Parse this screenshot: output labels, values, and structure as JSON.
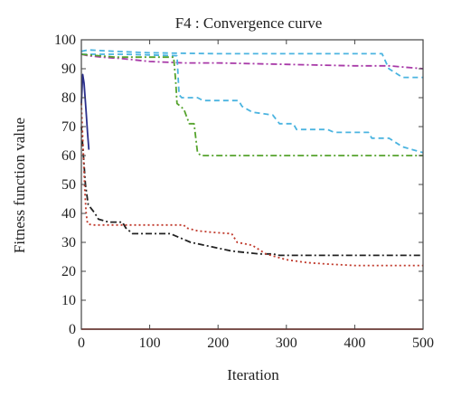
{
  "chart_data": {
    "type": "line",
    "title": "F4 : Convergence curve",
    "xlabel": "Iteration",
    "ylabel": "Fitness function value",
    "xlim": [
      0,
      500
    ],
    "ylim": [
      0,
      100
    ],
    "xticks": [
      0,
      100,
      200,
      300,
      400,
      500
    ],
    "yticks": [
      0,
      10,
      20,
      30,
      40,
      50,
      60,
      70,
      80,
      90,
      100
    ],
    "grid": false,
    "legend": "none",
    "series": [
      {
        "color": "#4bb4e0",
        "dash": "6,4",
        "points": [
          [
            0,
            96
          ],
          [
            10,
            96.5
          ],
          [
            50,
            96
          ],
          [
            100,
            95.5
          ],
          [
            200,
            95.2
          ],
          [
            300,
            95.2
          ],
          [
            440,
            95.2
          ],
          [
            450,
            90
          ],
          [
            470,
            87
          ],
          [
            500,
            87
          ]
        ]
      },
      {
        "color": "#a83aa8",
        "dash": "7,3,2,3",
        "points": [
          [
            0,
            95
          ],
          [
            10,
            94.5
          ],
          [
            30,
            94
          ],
          [
            60,
            93.5
          ],
          [
            100,
            92.5
          ],
          [
            150,
            92
          ],
          [
            200,
            92
          ],
          [
            300,
            91.5
          ],
          [
            400,
            91
          ],
          [
            450,
            91
          ],
          [
            500,
            90
          ]
        ]
      },
      {
        "color": "#4bb4e0",
        "dash": "6,4",
        "points": [
          [
            0,
            95
          ],
          [
            60,
            95
          ],
          [
            140,
            94.5
          ],
          [
            143,
            81
          ],
          [
            147,
            80
          ],
          [
            170,
            80
          ],
          [
            178,
            79
          ],
          [
            230,
            79
          ],
          [
            235,
            77
          ],
          [
            250,
            75
          ],
          [
            280,
            74
          ],
          [
            290,
            71
          ],
          [
            310,
            71
          ],
          [
            315,
            69
          ],
          [
            360,
            69
          ],
          [
            370,
            68
          ],
          [
            420,
            68
          ],
          [
            425,
            66
          ],
          [
            450,
            66
          ],
          [
            470,
            63
          ],
          [
            485,
            62
          ],
          [
            500,
            61
          ]
        ]
      },
      {
        "color": "#55a32d",
        "dash": "7,3,2,3",
        "points": [
          [
            0,
            95
          ],
          [
            50,
            94
          ],
          [
            130,
            94
          ],
          [
            135,
            94
          ],
          [
            138,
            86
          ],
          [
            140,
            78
          ],
          [
            150,
            76
          ],
          [
            158,
            71
          ],
          [
            165,
            71
          ],
          [
            170,
            61
          ],
          [
            175,
            60
          ],
          [
            200,
            60
          ],
          [
            300,
            60
          ],
          [
            400,
            60
          ],
          [
            500,
            60
          ]
        ]
      },
      {
        "color": "#2b2f8c",
        "dash": "",
        "points": [
          [
            0,
            78
          ],
          [
            2,
            88
          ],
          [
            4,
            85
          ],
          [
            7,
            75
          ],
          [
            9,
            68
          ],
          [
            11,
            62
          ]
        ]
      },
      {
        "color": "#222222",
        "dash": "7,3,2,3",
        "points": [
          [
            0,
            70
          ],
          [
            3,
            60
          ],
          [
            6,
            50
          ],
          [
            10,
            43
          ],
          [
            20,
            40
          ],
          [
            25,
            38
          ],
          [
            40,
            37
          ],
          [
            60,
            37
          ],
          [
            65,
            35
          ],
          [
            75,
            33
          ],
          [
            130,
            33
          ],
          [
            160,
            30
          ],
          [
            180,
            29
          ],
          [
            200,
            28
          ],
          [
            220,
            27
          ],
          [
            260,
            26
          ],
          [
            280,
            26
          ],
          [
            290,
            25.5
          ],
          [
            300,
            25.5
          ],
          [
            400,
            25.5
          ],
          [
            500,
            25.5
          ]
        ]
      },
      {
        "color": "#c0392b",
        "dash": "2,3",
        "points": [
          [
            0,
            78
          ],
          [
            3,
            60
          ],
          [
            5,
            48
          ],
          [
            7,
            40
          ],
          [
            9,
            36.5
          ],
          [
            15,
            36
          ],
          [
            60,
            36
          ],
          [
            110,
            36
          ],
          [
            150,
            36
          ],
          [
            153,
            35
          ],
          [
            170,
            34
          ],
          [
            190,
            33.5
          ],
          [
            220,
            33
          ],
          [
            228,
            30
          ],
          [
            250,
            29
          ],
          [
            270,
            26
          ],
          [
            300,
            24
          ],
          [
            330,
            23
          ],
          [
            360,
            22.5
          ],
          [
            400,
            22
          ],
          [
            500,
            22
          ]
        ]
      },
      {
        "color": "#c0392b",
        "dash": "",
        "points": [
          [
            0,
            0
          ],
          [
            500,
            0
          ]
        ]
      }
    ]
  }
}
